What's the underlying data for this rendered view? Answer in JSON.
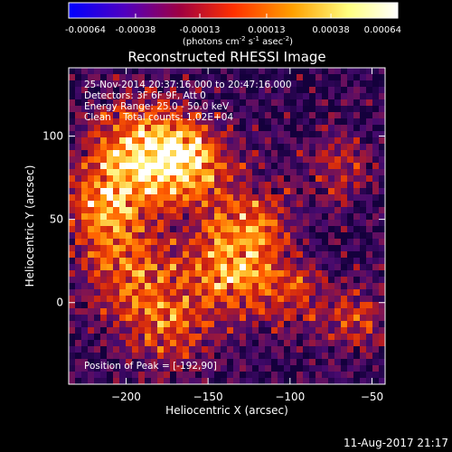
{
  "colorbar": {
    "ticks": [
      "-0.00064",
      "-0.00038",
      "-0.00013",
      "0.00013",
      "0.00038",
      "0.00064"
    ],
    "tick_values": [
      -0.00064,
      -0.00038,
      -0.00013,
      0.00013,
      0.00038,
      0.00064
    ],
    "range": [
      -0.00064,
      0.00064
    ],
    "unit_main": "(photons cm",
    "unit_sup1": "-2",
    "unit_mid1": " s",
    "unit_sup2": "-1",
    "unit_mid2": " asec",
    "unit_sup3": "-2",
    "unit_end": ")",
    "colors": [
      "#0000ff",
      "#5000c0",
      "#a00040",
      "#ff3000",
      "#ffa000",
      "#ffff80",
      "#ffffff"
    ]
  },
  "chart_data": {
    "type": "heatmap",
    "title": "Reconstructed RHESSI Image",
    "xlabel": "Heliocentric X (arcsec)",
    "ylabel": "Heliocentric Y (arcsec)",
    "xlim": [
      -235,
      -42
    ],
    "ylim": [
      -49,
      141
    ],
    "xticks": [
      -200,
      -150,
      -100,
      -50
    ],
    "xtick_labels": [
      "−200",
      "−150",
      "−100",
      "−50"
    ],
    "yticks": [
      0,
      50,
      100
    ],
    "ytick_labels": [
      "0",
      "50",
      "100"
    ],
    "annotations": [
      "25-Nov-2014 20:37:16.000 to 20:47:16.000",
      "Detectors: 3F 6F 9F, Att 0",
      "Energy Range: 25.0 - 50.0 keV",
      "Clean    Total counts: 1.02E+04"
    ],
    "peak_label": "Position of Peak = [-192,90]",
    "peak": [
      -192,
      90
    ]
  },
  "footer": {
    "timestamp": "11-Aug-2017 21:17"
  }
}
